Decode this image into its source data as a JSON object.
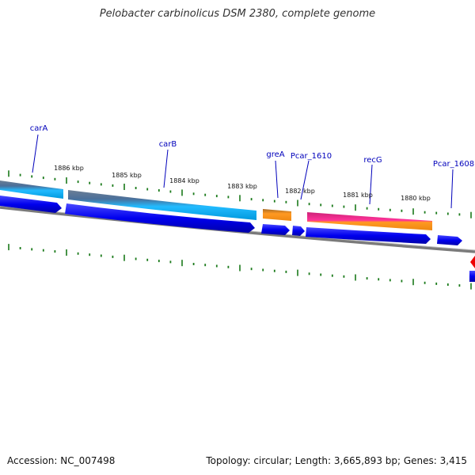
{
  "title": "Pelobacter carbinolicus DSM 2380, complete genome",
  "footer": {
    "accession": "Accession: NC_007498",
    "summary": "Topology: circular; Length: 3,665,893 bp; Genes: 3,415"
  },
  "colors": {
    "gene_label": "#0000bb",
    "cds": "#0000ee",
    "tick": "#1a7a1a",
    "backbone": "#888888",
    "feature_red": "#ee0000"
  },
  "scale_labels": [
    "1886 kbp",
    "1885 kbp",
    "1884 kbp",
    "1883 kbp",
    "1882 kbp",
    "1881 kbp",
    "1880 kbp"
  ],
  "genes": [
    {
      "name": "carA",
      "color": "#33aaee"
    },
    {
      "name": "carB",
      "color": "#33aaee"
    },
    {
      "name": "greA",
      "color": "#ff9922"
    },
    {
      "name": "Pcar_1610",
      "color": ""
    },
    {
      "name": "recG",
      "color": "#ee3388"
    },
    {
      "name": "Pcar_1608",
      "color": ""
    }
  ]
}
